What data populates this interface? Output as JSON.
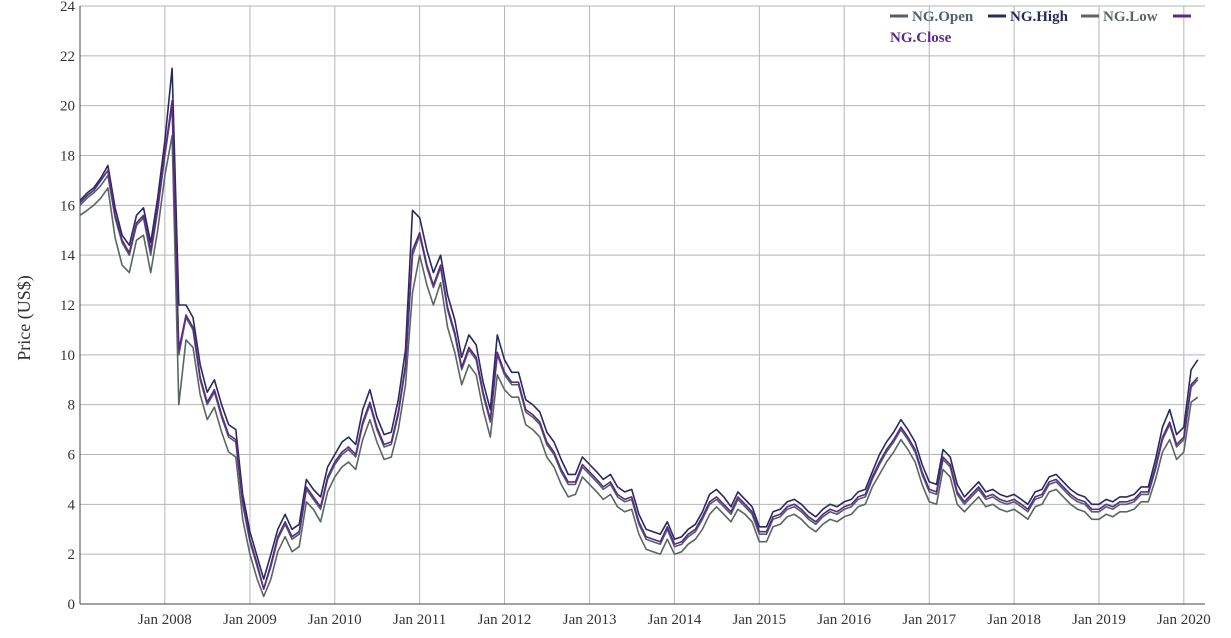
{
  "chart_data": {
    "type": "line",
    "title": "",
    "xlabel": "",
    "ylabel": "Price (US$)",
    "ylim": [
      0,
      24
    ],
    "xlim": [
      "2007-01-01",
      "2020-04-01"
    ],
    "yticks": [
      "0",
      "2",
      "4",
      "6",
      "8",
      "10",
      "12",
      "14",
      "16",
      "18",
      "20",
      "22",
      "24"
    ],
    "xticks": [
      {
        "date": "2008-01-01",
        "label": "Jan 2008"
      },
      {
        "date": "2009-01-01",
        "label": "Jan 2009"
      },
      {
        "date": "2010-01-01",
        "label": "Jan 2010"
      },
      {
        "date": "2011-01-01",
        "label": "Jan 2011"
      },
      {
        "date": "2012-01-01",
        "label": "Jan 2012"
      },
      {
        "date": "2013-01-01",
        "label": "Jan 2013"
      },
      {
        "date": "2014-01-01",
        "label": "Jan 2014"
      },
      {
        "date": "2015-01-01",
        "label": "Jan 2015"
      },
      {
        "date": "2016-01-01",
        "label": "Jan 2016"
      },
      {
        "date": "2017-01-01",
        "label": "Jan 2017"
      },
      {
        "date": "2018-01-01",
        "label": "Jan 2018"
      },
      {
        "date": "2019-01-01",
        "label": "Jan 2019"
      },
      {
        "date": "2020-01-01",
        "label": "Jan 2020"
      }
    ],
    "grid": true,
    "legend_position": "top-right",
    "x": [
      "2007-01-01",
      "2007-02-01",
      "2007-03-01",
      "2007-04-01",
      "2007-05-01",
      "2007-06-01",
      "2007-07-01",
      "2007-08-01",
      "2007-09-01",
      "2007-10-01",
      "2007-11-01",
      "2007-12-01",
      "2008-01-01",
      "2008-02-01",
      "2008-03-01",
      "2008-04-01",
      "2008-05-01",
      "2008-06-01",
      "2008-07-01",
      "2008-08-01",
      "2008-09-01",
      "2008-10-01",
      "2008-11-01",
      "2008-12-01",
      "2009-01-01",
      "2009-02-01",
      "2009-03-01",
      "2009-04-01",
      "2009-05-01",
      "2009-06-01",
      "2009-07-01",
      "2009-08-01",
      "2009-09-01",
      "2009-10-01",
      "2009-11-01",
      "2009-12-01",
      "2010-01-01",
      "2010-02-01",
      "2010-03-01",
      "2010-04-01",
      "2010-05-01",
      "2010-06-01",
      "2010-07-01",
      "2010-08-01",
      "2010-09-01",
      "2010-10-01",
      "2010-11-01",
      "2010-12-01",
      "2011-01-01",
      "2011-02-01",
      "2011-03-01",
      "2011-04-01",
      "2011-05-01",
      "2011-06-01",
      "2011-07-01",
      "2011-08-01",
      "2011-09-01",
      "2011-10-01",
      "2011-11-01",
      "2011-12-01",
      "2012-01-01",
      "2012-02-01",
      "2012-03-01",
      "2012-04-01",
      "2012-05-01",
      "2012-06-01",
      "2012-07-01",
      "2012-08-01",
      "2012-09-01",
      "2012-10-01",
      "2012-11-01",
      "2012-12-01",
      "2013-01-01",
      "2013-02-01",
      "2013-03-01",
      "2013-04-01",
      "2013-05-01",
      "2013-06-01",
      "2013-07-01",
      "2013-08-01",
      "2013-09-01",
      "2013-10-01",
      "2013-11-01",
      "2013-12-01",
      "2014-01-01",
      "2014-02-01",
      "2014-03-01",
      "2014-04-01",
      "2014-05-01",
      "2014-06-01",
      "2014-07-01",
      "2014-08-01",
      "2014-09-01",
      "2014-10-01",
      "2014-11-01",
      "2014-12-01",
      "2015-01-01",
      "2015-02-01",
      "2015-03-01",
      "2015-04-01",
      "2015-05-01",
      "2015-06-01",
      "2015-07-01",
      "2015-08-01",
      "2015-09-01",
      "2015-10-01",
      "2015-11-01",
      "2015-12-01",
      "2016-01-01",
      "2016-02-01",
      "2016-03-01",
      "2016-04-01",
      "2016-05-01",
      "2016-06-01",
      "2016-07-01",
      "2016-08-01",
      "2016-09-01",
      "2016-10-01",
      "2016-11-01",
      "2016-12-01",
      "2017-01-01",
      "2017-02-01",
      "2017-03-01",
      "2017-04-01",
      "2017-05-01",
      "2017-06-01",
      "2017-07-01",
      "2017-08-01",
      "2017-09-01",
      "2017-10-01",
      "2017-11-01",
      "2017-12-01",
      "2018-01-01",
      "2018-02-01",
      "2018-03-01",
      "2018-04-01",
      "2018-05-01",
      "2018-06-01",
      "2018-07-01",
      "2018-08-01",
      "2018-09-01",
      "2018-10-01",
      "2018-11-01",
      "2018-12-01",
      "2019-01-01",
      "2019-02-01",
      "2019-03-01",
      "2019-04-01",
      "2019-05-01",
      "2019-06-01",
      "2019-07-01",
      "2019-08-01",
      "2019-09-01",
      "2019-10-01",
      "2019-11-01",
      "2019-12-01",
      "2020-01-01",
      "2020-02-01",
      "2020-03-01"
    ],
    "series": [
      {
        "name": "NG.Open",
        "color": "#52606a",
        "values": [
          16.0,
          16.3,
          16.5,
          16.8,
          17.2,
          15.5,
          14.5,
          14.0,
          15.2,
          15.5,
          14.0,
          15.8,
          18.0,
          20.0,
          10.0,
          11.5,
          11.0,
          9.0,
          8.0,
          8.5,
          7.5,
          6.7,
          6.5,
          4.0,
          2.5,
          1.5,
          0.6,
          1.5,
          2.6,
          3.2,
          2.6,
          2.8,
          4.6,
          4.2,
          3.8,
          5.0,
          5.6,
          6.0,
          6.2,
          5.9,
          7.2,
          8.0,
          7.0,
          6.3,
          6.4,
          7.6,
          9.5,
          14.0,
          14.8,
          13.5,
          12.7,
          13.5,
          11.8,
          10.8,
          9.4,
          10.2,
          9.8,
          8.4,
          7.3,
          10.0,
          9.2,
          8.8,
          8.8,
          7.7,
          7.5,
          7.2,
          6.4,
          6.0,
          5.3,
          4.8,
          4.8,
          5.5,
          5.2,
          4.9,
          4.6,
          4.8,
          4.3,
          4.1,
          4.2,
          3.2,
          2.6,
          2.5,
          2.4,
          3.0,
          2.3,
          2.4,
          2.7,
          2.9,
          3.4,
          4.0,
          4.2,
          3.9,
          3.6,
          4.2,
          3.9,
          3.6,
          2.8,
          2.8,
          3.4,
          3.5,
          3.8,
          3.9,
          3.7,
          3.4,
          3.2,
          3.5,
          3.7,
          3.6,
          3.8,
          3.9,
          4.2,
          4.3,
          5.0,
          5.6,
          6.1,
          6.5,
          7.0,
          6.6,
          6.1,
          5.2,
          4.5,
          4.4,
          5.8,
          5.5,
          4.4,
          4.0,
          4.3,
          4.6,
          4.2,
          4.3,
          4.1,
          4.0,
          4.1,
          3.9,
          3.7,
          4.2,
          4.3,
          4.8,
          4.9,
          4.6,
          4.3,
          4.1,
          4.0,
          3.7,
          3.7,
          3.9,
          3.8,
          4.0,
          4.0,
          4.1,
          4.4,
          4.4,
          5.4,
          6.6,
          7.2,
          6.3,
          6.6,
          8.7,
          9.0
        ]
      },
      {
        "name": "NG.High",
        "color": "#252b5c",
        "values": [
          16.2,
          16.5,
          16.7,
          17.1,
          17.6,
          15.9,
          14.8,
          14.4,
          15.6,
          15.9,
          14.5,
          16.3,
          18.6,
          21.5,
          12.0,
          12.0,
          11.5,
          9.6,
          8.5,
          9.0,
          8.0,
          7.2,
          7.0,
          4.4,
          2.9,
          1.9,
          1.0,
          2.0,
          3.0,
          3.6,
          3.0,
          3.2,
          5.0,
          4.6,
          4.3,
          5.5,
          6.0,
          6.5,
          6.7,
          6.4,
          7.8,
          8.6,
          7.5,
          6.8,
          6.9,
          8.2,
          10.2,
          15.8,
          15.5,
          14.2,
          13.3,
          14.0,
          12.4,
          11.4,
          9.9,
          10.8,
          10.4,
          8.9,
          7.8,
          10.8,
          9.8,
          9.3,
          9.3,
          8.2,
          8.0,
          7.7,
          6.9,
          6.5,
          5.8,
          5.2,
          5.2,
          5.9,
          5.6,
          5.3,
          5.0,
          5.2,
          4.7,
          4.5,
          4.6,
          3.6,
          3.0,
          2.9,
          2.8,
          3.3,
          2.6,
          2.7,
          3.0,
          3.2,
          3.7,
          4.4,
          4.6,
          4.3,
          3.9,
          4.5,
          4.2,
          3.9,
          3.1,
          3.1,
          3.7,
          3.8,
          4.1,
          4.2,
          4.0,
          3.7,
          3.5,
          3.8,
          4.0,
          3.9,
          4.1,
          4.2,
          4.5,
          4.6,
          5.3,
          6.0,
          6.5,
          6.9,
          7.4,
          7.0,
          6.5,
          5.6,
          4.9,
          4.8,
          6.2,
          5.9,
          4.8,
          4.3,
          4.6,
          4.9,
          4.5,
          4.6,
          4.4,
          4.3,
          4.4,
          4.2,
          4.0,
          4.5,
          4.6,
          5.1,
          5.2,
          4.9,
          4.6,
          4.4,
          4.3,
          4.0,
          4.0,
          4.2,
          4.1,
          4.3,
          4.3,
          4.4,
          4.7,
          4.7,
          5.8,
          7.1,
          7.8,
          6.8,
          7.1,
          9.4,
          9.8
        ]
      },
      {
        "name": "NG.Low",
        "color": "#5a6663",
        "values": [
          15.6,
          15.8,
          16.0,
          16.3,
          16.7,
          14.7,
          13.6,
          13.3,
          14.6,
          14.8,
          13.3,
          15.0,
          17.2,
          18.8,
          8.0,
          10.6,
          10.3,
          8.4,
          7.4,
          7.9,
          6.9,
          6.1,
          5.9,
          3.4,
          2.0,
          1.0,
          0.3,
          1.0,
          2.1,
          2.7,
          2.1,
          2.3,
          4.1,
          3.8,
          3.3,
          4.5,
          5.1,
          5.5,
          5.7,
          5.4,
          6.6,
          7.4,
          6.5,
          5.8,
          5.9,
          7.0,
          8.8,
          12.5,
          14.0,
          12.8,
          12.0,
          12.9,
          11.1,
          10.1,
          8.8,
          9.6,
          9.2,
          7.8,
          6.7,
          9.2,
          8.6,
          8.3,
          8.3,
          7.2,
          7.0,
          6.7,
          5.9,
          5.5,
          4.8,
          4.3,
          4.4,
          5.1,
          4.8,
          4.5,
          4.2,
          4.4,
          3.9,
          3.7,
          3.8,
          2.8,
          2.2,
          2.1,
          2.0,
          2.6,
          2.0,
          2.1,
          2.4,
          2.6,
          3.0,
          3.6,
          3.9,
          3.6,
          3.3,
          3.8,
          3.6,
          3.3,
          2.5,
          2.5,
          3.1,
          3.2,
          3.5,
          3.6,
          3.4,
          3.1,
          2.9,
          3.2,
          3.4,
          3.3,
          3.5,
          3.6,
          3.9,
          4.0,
          4.7,
          5.2,
          5.7,
          6.1,
          6.6,
          6.2,
          5.7,
          4.8,
          4.1,
          4.0,
          5.4,
          5.1,
          4.0,
          3.7,
          4.0,
          4.3,
          3.9,
          4.0,
          3.8,
          3.7,
          3.8,
          3.6,
          3.4,
          3.9,
          4.0,
          4.5,
          4.6,
          4.3,
          4.0,
          3.8,
          3.7,
          3.4,
          3.4,
          3.6,
          3.5,
          3.7,
          3.7,
          3.8,
          4.1,
          4.1,
          5.0,
          6.1,
          6.6,
          5.8,
          6.1,
          8.1,
          8.3
        ]
      },
      {
        "name": "NG.Close",
        "color": "#5b2a86",
        "values": [
          16.1,
          16.4,
          16.6,
          17.0,
          17.4,
          15.6,
          14.6,
          14.1,
          15.3,
          15.6,
          14.2,
          15.9,
          18.1,
          20.2,
          10.2,
          11.6,
          11.1,
          9.1,
          8.1,
          8.6,
          7.6,
          6.8,
          6.6,
          4.1,
          2.6,
          1.6,
          0.6,
          1.6,
          2.7,
          3.3,
          2.7,
          2.9,
          4.7,
          4.3,
          3.9,
          5.1,
          5.7,
          6.1,
          6.3,
          6.0,
          7.3,
          8.1,
          7.1,
          6.4,
          6.5,
          7.7,
          9.6,
          14.2,
          14.9,
          13.6,
          12.8,
          13.6,
          11.9,
          10.9,
          9.5,
          10.3,
          9.9,
          8.5,
          7.4,
          10.1,
          9.3,
          8.9,
          8.9,
          7.8,
          7.6,
          7.3,
          6.5,
          6.1,
          5.4,
          4.9,
          4.9,
          5.6,
          5.3,
          5.0,
          4.7,
          4.9,
          4.4,
          4.2,
          4.3,
          3.3,
          2.7,
          2.6,
          2.5,
          3.1,
          2.4,
          2.5,
          2.8,
          3.0,
          3.5,
          4.1,
          4.3,
          4.0,
          3.7,
          4.3,
          4.0,
          3.7,
          2.9,
          2.9,
          3.5,
          3.6,
          3.9,
          4.0,
          3.8,
          3.5,
          3.3,
          3.6,
          3.8,
          3.7,
          3.9,
          4.0,
          4.3,
          4.4,
          5.1,
          5.7,
          6.2,
          6.6,
          7.1,
          6.7,
          6.2,
          5.3,
          4.6,
          4.5,
          5.9,
          5.6,
          4.5,
          4.1,
          4.4,
          4.7,
          4.3,
          4.4,
          4.2,
          4.1,
          4.2,
          4.0,
          3.8,
          4.3,
          4.4,
          4.9,
          5.0,
          4.7,
          4.4,
          4.2,
          4.1,
          3.8,
          3.8,
          4.0,
          3.9,
          4.1,
          4.1,
          4.2,
          4.5,
          4.5,
          5.5,
          6.7,
          7.3,
          6.4,
          6.7,
          8.8,
          9.1
        ]
      }
    ]
  }
}
